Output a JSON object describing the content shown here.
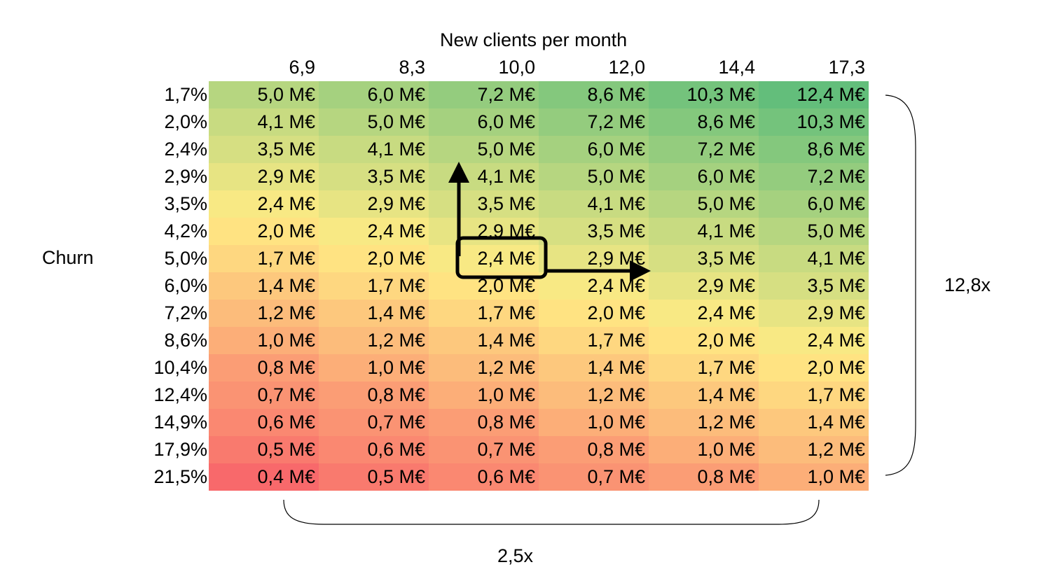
{
  "chart_data": {
    "type": "heatmap",
    "xlabel": "New clients per month",
    "ylabel": "Churn",
    "x": [
      "6,9",
      "8,3",
      "10,0",
      "12,0",
      "14,4",
      "17,3"
    ],
    "y": [
      "1,7%",
      "2,0%",
      "2,4%",
      "2,9%",
      "3,5%",
      "4,2%",
      "5,0%",
      "6,0%",
      "7,2%",
      "8,6%",
      "10,4%",
      "12,4%",
      "14,9%",
      "17,9%",
      "21,5%"
    ],
    "unit": "M€",
    "values": [
      [
        5.0,
        6.0,
        7.2,
        8.6,
        10.3,
        12.4
      ],
      [
        4.1,
        5.0,
        6.0,
        7.2,
        8.6,
        10.3
      ],
      [
        3.5,
        4.1,
        5.0,
        6.0,
        7.2,
        8.6
      ],
      [
        2.9,
        3.5,
        4.1,
        5.0,
        6.0,
        7.2
      ],
      [
        2.4,
        2.9,
        3.5,
        4.1,
        5.0,
        6.0
      ],
      [
        2.0,
        2.4,
        2.9,
        3.5,
        4.1,
        5.0
      ],
      [
        1.7,
        2.0,
        2.4,
        2.9,
        3.5,
        4.1
      ],
      [
        1.4,
        1.7,
        2.0,
        2.4,
        2.9,
        3.5
      ],
      [
        1.2,
        1.4,
        1.7,
        2.0,
        2.4,
        2.9
      ],
      [
        1.0,
        1.2,
        1.4,
        1.7,
        2.0,
        2.4
      ],
      [
        0.8,
        1.0,
        1.2,
        1.4,
        1.7,
        2.0
      ],
      [
        0.7,
        0.8,
        1.0,
        1.2,
        1.4,
        1.7
      ],
      [
        0.6,
        0.7,
        0.8,
        1.0,
        1.2,
        1.4
      ],
      [
        0.5,
        0.6,
        0.7,
        0.8,
        1.0,
        1.2
      ],
      [
        0.4,
        0.5,
        0.6,
        0.7,
        0.8,
        1.0
      ]
    ],
    "cell_labels": [
      [
        "5,0 M€",
        "6,0 M€",
        "7,2 M€",
        "8,6 M€",
        "10,3 M€",
        "12,4 M€"
      ],
      [
        "4,1 M€",
        "5,0 M€",
        "6,0 M€",
        "7,2 M€",
        "8,6 M€",
        "10,3 M€"
      ],
      [
        "3,5 M€",
        "4,1 M€",
        "5,0 M€",
        "6,0 M€",
        "7,2 M€",
        "8,6 M€"
      ],
      [
        "2,9 M€",
        "3,5 M€",
        "4,1 M€",
        "5,0 M€",
        "6,0 M€",
        "7,2 M€"
      ],
      [
        "2,4 M€",
        "2,9 M€",
        "3,5 M€",
        "4,1 M€",
        "5,0 M€",
        "6,0 M€"
      ],
      [
        "2,0 M€",
        "2,4 M€",
        "2,9 M€",
        "3,5 M€",
        "4,1 M€",
        "5,0 M€"
      ],
      [
        "1,7 M€",
        "2,0 M€",
        "2,4 M€",
        "2,9 M€",
        "3,5 M€",
        "4,1 M€"
      ],
      [
        "1,4 M€",
        "1,7 M€",
        "2,0 M€",
        "2,4 M€",
        "2,9 M€",
        "3,5 M€"
      ],
      [
        "1,2 M€",
        "1,4 M€",
        "1,7 M€",
        "2,0 M€",
        "2,4 M€",
        "2,9 M€"
      ],
      [
        "1,0 M€",
        "1,2 M€",
        "1,4 M€",
        "1,7 M€",
        "2,0 M€",
        "2,4 M€"
      ],
      [
        "0,8 M€",
        "1,0 M€",
        "1,2 M€",
        "1,4 M€",
        "1,7 M€",
        "2,0 M€"
      ],
      [
        "0,7 M€",
        "0,8 M€",
        "1,0 M€",
        "1,2 M€",
        "1,4 M€",
        "1,7 M€"
      ],
      [
        "0,6 M€",
        "0,7 M€",
        "0,8 M€",
        "1,0 M€",
        "1,2 M€",
        "1,4 M€"
      ],
      [
        "0,5 M€",
        "0,6 M€",
        "0,7 M€",
        "0,8 M€",
        "1,0 M€",
        "1,2 M€"
      ],
      [
        "0,4 M€",
        "0,5 M€",
        "0,6 M€",
        "0,7 M€",
        "0,8 M€",
        "1,0 M€"
      ]
    ],
    "highlighted_cell": {
      "row": 6,
      "col": 2
    },
    "color_scale": {
      "low": "#f8696b",
      "mid": "#ffeb84",
      "high": "#63be7b"
    },
    "annotations": {
      "vertical_span": "12,8x",
      "horizontal_span": "2,5x"
    }
  }
}
